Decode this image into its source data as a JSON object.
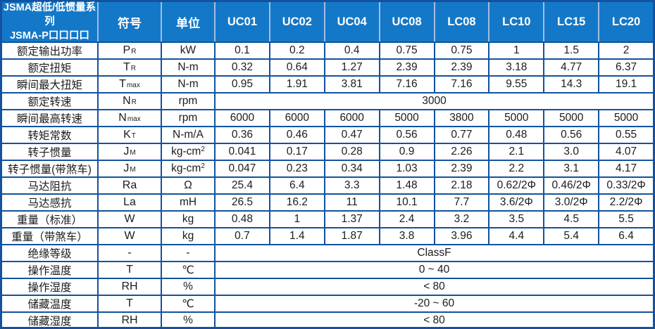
{
  "table": {
    "colors": {
      "header_bg": "#1478c8",
      "border": "#12529e",
      "header_divider": "#a3bce4",
      "header_text": "#ffffff",
      "cell_text": "#1c1c1c"
    },
    "header": {
      "series_title_line1": "JSMA超低/低惯量系列",
      "series_title_line2": "JSMA-P口口口口",
      "symbol_col": "符号",
      "unit_col": "单位",
      "models": [
        "UC01",
        "UC02",
        "UC04",
        "UC08",
        "LC08",
        "LC10",
        "LC15",
        "LC20"
      ]
    },
    "rows": [
      {
        "label": "额定输出功率",
        "symbol": {
          "base": "P",
          "sub": "R"
        },
        "unit": "kW",
        "values": [
          "0.1",
          "0.2",
          "0.4",
          "0.75",
          "0.75",
          "1",
          "1.5",
          "2"
        ]
      },
      {
        "label": "额定扭矩",
        "symbol": {
          "base": "T",
          "sub": "R"
        },
        "unit": "N-m",
        "values": [
          "0.32",
          "0.64",
          "1.27",
          "2.39",
          "2.39",
          "3.18",
          "4.77",
          "6.37"
        ]
      },
      {
        "label": "瞬间最大扭矩",
        "symbol": {
          "base": "T",
          "sub": "max"
        },
        "unit": "N-m",
        "values": [
          "0.95",
          "1.91",
          "3.81",
          "7.16",
          "7.16",
          "9.55",
          "14.3",
          "19.1"
        ]
      },
      {
        "label": "额定转速",
        "symbol": {
          "base": "N",
          "sub": "R"
        },
        "unit": "rpm",
        "merged": "3000"
      },
      {
        "label": "瞬间最高转速",
        "symbol": {
          "base": "N",
          "sub": "max"
        },
        "unit": "rpm",
        "values": [
          "6000",
          "6000",
          "6000",
          "5000",
          "3800",
          "5000",
          "5000",
          "5000"
        ]
      },
      {
        "label": "转矩常数",
        "symbol": {
          "base": "K",
          "sub": "T"
        },
        "unit": "N-m/A",
        "values": [
          "0.36",
          "0.46",
          "0.47",
          "0.56",
          "0.77",
          "0.48",
          "0.56",
          "0.55"
        ]
      },
      {
        "label": "转子惯量",
        "symbol": {
          "base": "J",
          "sub": "M"
        },
        "unit": "kg-cm",
        "unit_sup": "2",
        "values": [
          "0.041",
          "0.17",
          "0.28",
          "0.9",
          "2.26",
          "2.1",
          "3.0",
          "4.07"
        ]
      },
      {
        "label": "转子惯量(带煞车)",
        "symbol": {
          "base": "J",
          "sub": "M"
        },
        "unit": "kg-cm",
        "unit_sup": "2",
        "values": [
          "0.047",
          "0.23",
          "0.34",
          "1.03",
          "2.39",
          "2.2",
          "3.1",
          "4.17"
        ]
      },
      {
        "label": "马达阻抗",
        "symbol": {
          "base": "Ra"
        },
        "unit": "Ω",
        "values": [
          "25.4",
          "6.4",
          "3.3",
          "1.48",
          "2.18",
          "0.62/2Φ",
          "0.46/2Φ",
          "0.33/2Φ"
        ]
      },
      {
        "label": "马达感抗",
        "symbol": {
          "base": "La"
        },
        "unit": "mH",
        "values": [
          "26.5",
          "16.2",
          "11",
          "10.1",
          "7.7",
          "3.6/2Φ",
          "3.0/2Φ",
          "2.2/2Φ"
        ]
      },
      {
        "label": "重量（标准）",
        "symbol": {
          "base": "W"
        },
        "unit": "kg",
        "values": [
          "0.48",
          "1",
          "1.37",
          "2.4",
          "3.2",
          "3.5",
          "4.5",
          "5.5"
        ]
      },
      {
        "label": "重量（带煞车）",
        "symbol": {
          "base": "W"
        },
        "unit": "kg",
        "values": [
          "0.7",
          "1.4",
          "1.87",
          "3.8",
          "3.96",
          "4.4",
          "5.4",
          "6.4"
        ]
      },
      {
        "label": "绝缘等级",
        "symbol": {
          "base": "-"
        },
        "unit": "-",
        "merged": "ClassF"
      },
      {
        "label": "操作温度",
        "symbol": {
          "base": "T"
        },
        "unit": "℃",
        "merged": "0 ~ 40"
      },
      {
        "label": "操作湿度",
        "symbol": {
          "base": "RH"
        },
        "unit": "%",
        "merged": "< 80"
      },
      {
        "label": "储藏温度",
        "symbol": {
          "base": "T"
        },
        "unit": "℃",
        "merged": "-20 ~ 60"
      },
      {
        "label": "储藏湿度",
        "symbol": {
          "base": "RH"
        },
        "unit": "%",
        "merged": "< 80"
      }
    ]
  }
}
